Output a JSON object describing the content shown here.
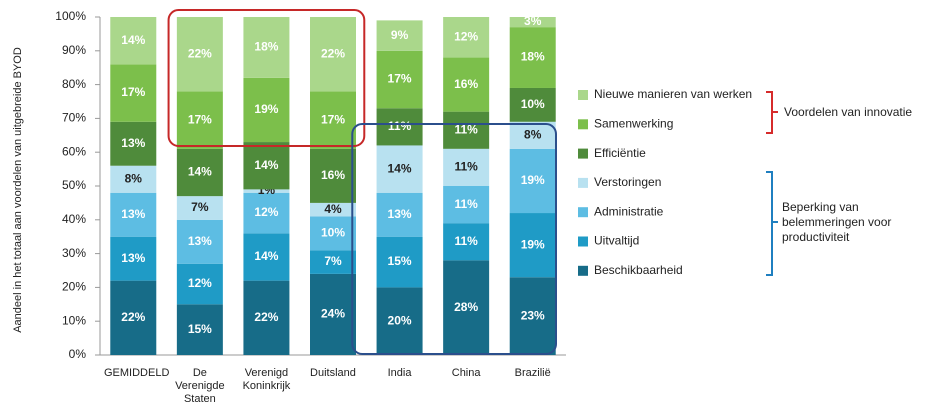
{
  "chart_data": {
    "type": "stacked_bar",
    "ylabel": "Aandeel in het totaal aan voordelen van uitgebreide BYOD",
    "categories": [
      "GEMIDDELD",
      "De Verenigde Staten",
      "Verenigd Koninkrijk",
      "Duitsland",
      "India",
      "China",
      "Brazilië"
    ],
    "ylim": [
      0,
      100
    ],
    "yticks": [
      {
        "value": 0,
        "label": "0%"
      },
      {
        "value": 10,
        "label": "10%"
      },
      {
        "value": 20,
        "label": "20%"
      },
      {
        "value": 30,
        "label": "30%"
      },
      {
        "value": 40,
        "label": "40%"
      },
      {
        "value": 50,
        "label": "50%"
      },
      {
        "value": 60,
        "label": "60%"
      },
      {
        "value": 70,
        "label": "70%"
      },
      {
        "value": 80,
        "label": "80%"
      },
      {
        "value": 90,
        "label": "90%"
      },
      {
        "value": 100,
        "label": "100%"
      }
    ],
    "series": [
      {
        "name": "Beschikbaarheid",
        "color": "#176c88",
        "label_color": "#ffffff",
        "values": [
          22,
          15,
          22,
          24,
          20,
          28,
          23
        ],
        "value_labels": [
          "22%",
          "15%",
          "22%",
          "24%",
          "20%",
          "28%",
          "23%"
        ]
      },
      {
        "name": "Uitvaltijd",
        "color": "#1f9bc6",
        "label_color": "#ffffff",
        "values": [
          13,
          12,
          14,
          7,
          15,
          11,
          19
        ],
        "value_labels": [
          "13%",
          "12%",
          "14%",
          "7%",
          "15%",
          "11%",
          "19%"
        ]
      },
      {
        "name": "Administratie",
        "color": "#5dbde3",
        "label_color": "#ffffff",
        "values": [
          13,
          13,
          12,
          10,
          13,
          11,
          19
        ],
        "value_labels": [
          "13%",
          "13%",
          "12%",
          "10%",
          "13%",
          "11%",
          "19%"
        ]
      },
      {
        "name": "Verstoringen",
        "color": "#b8e1f0",
        "label_color": "#222222",
        "values": [
          8,
          7,
          1,
          4,
          14,
          11,
          8
        ],
        "value_labels": [
          "8%",
          "7%",
          "1%",
          "4%",
          "14%",
          "11%",
          "8%"
        ]
      },
      {
        "name": "Efficiëntie",
        "color": "#4f8b3b",
        "label_color": "#ffffff",
        "values": [
          13,
          14,
          14,
          16,
          11,
          11,
          10
        ],
        "value_labels": [
          "13%",
          "14%",
          "14%",
          "16%",
          "11%",
          "11%",
          "10%"
        ]
      },
      {
        "name": "Samenwerking",
        "color": "#7cbf4b",
        "label_color": "#ffffff",
        "values": [
          17,
          17,
          19,
          17,
          17,
          16,
          18
        ],
        "value_labels": [
          "17%",
          "17%",
          "19%",
          "17%",
          "17%",
          "16%",
          "18%"
        ]
      },
      {
        "name": "Nieuwe manieren van werken",
        "color": "#aad78b",
        "label_color": "#ffffff",
        "values": [
          14,
          22,
          18,
          22,
          9,
          12,
          3
        ],
        "value_labels": [
          "14%",
          "22%",
          "18%",
          "22%",
          "9%",
          "12%",
          "3%"
        ]
      }
    ],
    "annotations": [
      "Voordelen van innovatie",
      "Beperking van belemmeringen voor productiviteit"
    ]
  }
}
